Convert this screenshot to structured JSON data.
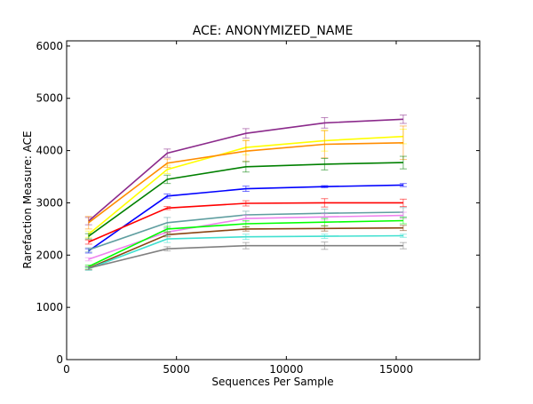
{
  "chart_data": {
    "type": "line",
    "title": "ACE: ANONYMIZED_NAME",
    "xlabel": "Sequences Per Sample",
    "ylabel": "Rarefaction Measure: ACE",
    "xlim": [
      0,
      18800
    ],
    "ylim": [
      0,
      6100
    ],
    "xticks": [
      0,
      5000,
      10000,
      15000
    ],
    "yticks": [
      0,
      1000,
      2000,
      3000,
      4000,
      5000,
      6000
    ],
    "x": [
      1000,
      4580,
      8160,
      11740,
      15320
    ],
    "grid": false,
    "legend": "none",
    "series": [
      {
        "color": "#8b2a8b",
        "values": [
          2650,
          3950,
          4330,
          4530,
          4600
        ],
        "errors": [
          70,
          80,
          90,
          100,
          80
        ]
      },
      {
        "color": "#ffff00",
        "values": [
          2400,
          3640,
          4060,
          4190,
          4270
        ],
        "errors": [
          60,
          80,
          140,
          200,
          140
        ]
      },
      {
        "color": "#ff8c00",
        "values": [
          2620,
          3760,
          3990,
          4120,
          4150
        ],
        "errors": [
          120,
          80,
          200,
          260,
          320
        ]
      },
      {
        "color": "#008000",
        "values": [
          2360,
          3450,
          3690,
          3740,
          3770
        ],
        "errors": [
          50,
          80,
          100,
          110,
          120
        ]
      },
      {
        "color": "#0000ff",
        "values": [
          2080,
          3130,
          3270,
          3310,
          3340
        ],
        "errors": [
          40,
          40,
          50,
          20,
          30
        ]
      },
      {
        "color": "#ff0000",
        "values": [
          2250,
          2900,
          2990,
          3000,
          3000
        ],
        "errors": [
          40,
          30,
          50,
          80,
          70
        ]
      },
      {
        "color": "#5f9ea0",
        "values": [
          2100,
          2620,
          2770,
          2800,
          2820
        ],
        "errors": [
          40,
          100,
          70,
          80,
          90
        ]
      },
      {
        "color": "#ee82ee",
        "values": [
          1920,
          2440,
          2700,
          2730,
          2760
        ],
        "errors": [
          30,
          60,
          60,
          60,
          60
        ]
      },
      {
        "color": "#00ff00",
        "values": [
          1780,
          2500,
          2600,
          2630,
          2660
        ],
        "errors": [
          30,
          50,
          60,
          70,
          60
        ]
      },
      {
        "color": "#8b4513",
        "values": [
          1750,
          2390,
          2500,
          2510,
          2520
        ],
        "errors": [
          30,
          40,
          40,
          50,
          50
        ]
      },
      {
        "color": "#40e0d0",
        "values": [
          1740,
          2310,
          2350,
          2360,
          2370
        ],
        "errors": [
          30,
          70,
          50,
          40,
          30
        ]
      },
      {
        "color": "#808080",
        "values": [
          1750,
          2120,
          2180,
          2180,
          2180
        ],
        "errors": [
          30,
          40,
          60,
          70,
          60
        ]
      }
    ]
  }
}
